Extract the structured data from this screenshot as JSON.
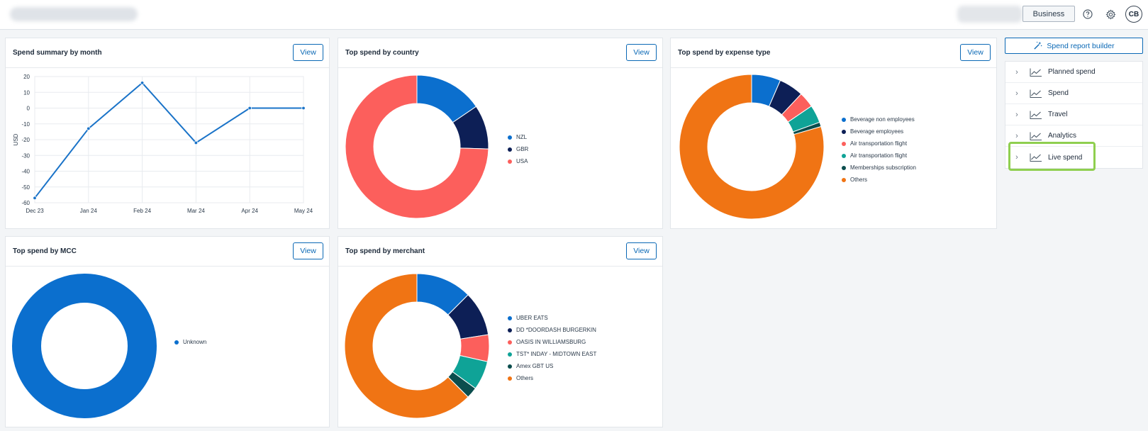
{
  "header": {
    "business_label": "Business",
    "help_icon": "help-icon",
    "settings_icon": "gear-icon",
    "avatar_initials": "CB"
  },
  "cards": {
    "spend_summary": {
      "title": "Spend summary by month",
      "view_label": "View"
    },
    "top_country": {
      "title": "Top spend by country",
      "view_label": "View"
    },
    "top_expense": {
      "title": "Top spend by expense type",
      "view_label": "View"
    },
    "top_mcc": {
      "title": "Top spend by MCC",
      "view_label": "View"
    },
    "top_merchant": {
      "title": "Top spend by merchant",
      "view_label": "View"
    }
  },
  "side_panel": {
    "builder_label": "Spend report builder",
    "items": [
      {
        "label": "Planned spend"
      },
      {
        "label": "Spend"
      },
      {
        "label": "Travel"
      },
      {
        "label": "Analytics"
      },
      {
        "label": "Live spend"
      }
    ]
  },
  "chart_data": [
    {
      "id": "spend_summary",
      "type": "line",
      "title": "Spend summary by month",
      "categories": [
        "Dec 23",
        "Jan 24",
        "Feb 24",
        "Mar 24",
        "Apr 24",
        "May 24"
      ],
      "values": [
        -57,
        -13,
        16,
        -22,
        0,
        0
      ],
      "ylabel": "USD",
      "ylim": [
        -60,
        20
      ],
      "yticks": [
        20,
        10,
        0,
        -10,
        -20,
        -30,
        -40,
        -50,
        -60
      ],
      "color": "#1a73c8"
    },
    {
      "id": "top_country",
      "type": "pie",
      "title": "Top spend by country",
      "labels": [
        "NZL",
        "GBR",
        "USA"
      ],
      "values": [
        15.5,
        10,
        74.5
      ],
      "colors": [
        "#0b6fce",
        "#0d1f56",
        "#fc5f5c"
      ]
    },
    {
      "id": "top_expense",
      "type": "pie",
      "title": "Top spend by expense type",
      "labels": [
        "Beverage non employees",
        "Beverage employees",
        "Air transportation flight",
        "Air transportation flight",
        "Memberships subscription",
        "Others"
      ],
      "values": [
        6.5,
        5.5,
        3.5,
        4,
        1,
        79.5
      ],
      "colors": [
        "#0b6fce",
        "#0d1f56",
        "#fc5f5c",
        "#0fa397",
        "#0b4d4d",
        "#f07414"
      ]
    },
    {
      "id": "top_mcc",
      "type": "pie",
      "title": "Top spend by MCC",
      "labels": [
        "Unknown"
      ],
      "values": [
        100
      ],
      "colors": [
        "#0b6fce"
      ]
    },
    {
      "id": "top_merchant",
      "type": "pie",
      "title": "Top spend by merchant",
      "labels": [
        "UBER EATS",
        "DD *DOORDASH BURGERKIN",
        "OASIS IN WILLIAMSBURG",
        "TST* INDAY - MIDTOWN EAST",
        "Amex GBT US",
        "Others"
      ],
      "values": [
        12.5,
        10,
        6,
        6.5,
        2.5,
        62.5
      ],
      "colors": [
        "#0b6fce",
        "#0d1f56",
        "#fc5f5c",
        "#0fa397",
        "#0b4d4d",
        "#f07414"
      ]
    }
  ]
}
